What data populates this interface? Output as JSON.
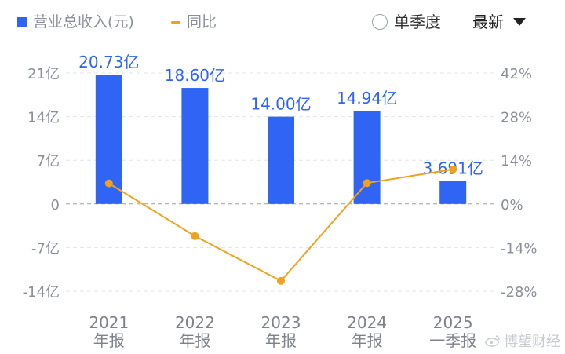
{
  "legend": {
    "bar_label": "营业总收入(元)",
    "line_label": "同比"
  },
  "controls": {
    "quarter_toggle": "单季度",
    "dropdown_value": "最新"
  },
  "watermark": "博望财经",
  "colors": {
    "bar": "#2f64f5",
    "line": "#f0a11e",
    "axis_label": "#8a8f99",
    "data_label": "#2f64f5",
    "grid": "#e3e6ea"
  },
  "chart_data": {
    "type": "bar",
    "categories": [
      [
        "2021",
        "年报"
      ],
      [
        "2022",
        "年报"
      ],
      [
        "2023",
        "年报"
      ],
      [
        "2024",
        "年报"
      ],
      [
        "2025",
        "一季报"
      ]
    ],
    "series": [
      {
        "name": "营业总收入(元)",
        "type": "bar",
        "axis": "left",
        "values": [
          20.73,
          18.6,
          14.0,
          14.94,
          3.691
        ],
        "labels": [
          "20.73亿",
          "18.60亿",
          "14.00亿",
          "14.94亿",
          "3.691亿"
        ]
      },
      {
        "name": "同比",
        "type": "line",
        "axis": "right",
        "values": [
          6.6,
          -10.3,
          -24.7,
          6.7,
          11.1
        ]
      }
    ],
    "y_left": {
      "ticks": [
        21,
        14,
        7,
        0,
        -7,
        -14
      ],
      "tick_labels": [
        "21亿",
        "14亿",
        "7亿",
        "0",
        "-7亿",
        "-14亿"
      ],
      "range": [
        -14,
        21
      ]
    },
    "y_right": {
      "ticks": [
        42,
        28,
        14,
        0,
        -14,
        -28
      ],
      "tick_labels": [
        "42%",
        "28%",
        "14%",
        "0%",
        "-14%",
        "-28%"
      ],
      "range": [
        -28,
        42
      ]
    },
    "grid": true,
    "legend_position": "top-left"
  }
}
